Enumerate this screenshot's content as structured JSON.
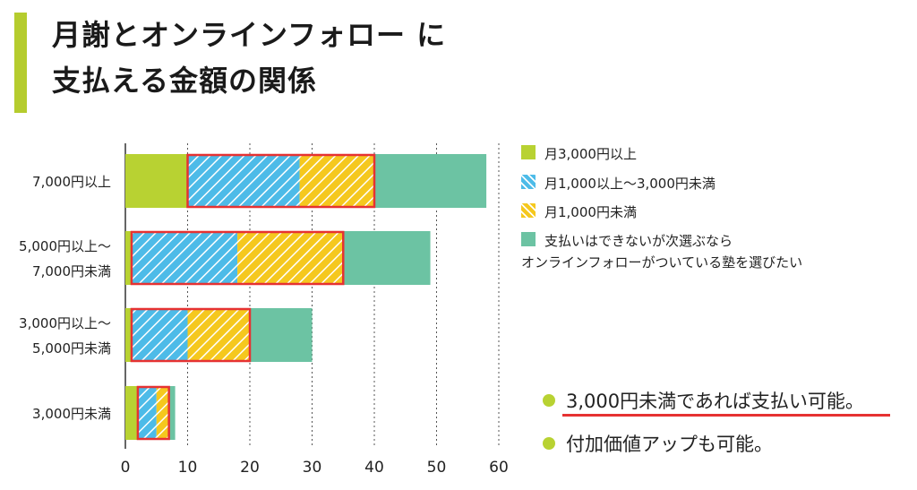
{
  "title": {
    "line1": "月謝とオンラインフォロー に",
    "line2": "支払える金額の関係"
  },
  "colors": {
    "accent_bar": "#b5cc2e",
    "green": "#b8d232",
    "blue": "#4dbbe8",
    "yellow": "#f5c81e",
    "teal": "#6cc3a3",
    "highlight": "#e63232",
    "bullet": "#b8d232"
  },
  "chart_data": {
    "type": "bar",
    "orientation": "horizontal",
    "stacked": true,
    "categories": [
      [
        "7,000円以上"
      ],
      [
        "5,000円以上～",
        "7,000円未満"
      ],
      [
        "3,000円以上～",
        "5,000円未満"
      ],
      [
        "3,000円未満"
      ]
    ],
    "series": [
      {
        "name": "月3,000円以上",
        "color": "green",
        "pattern": "solid",
        "values": [
          10,
          1,
          1,
          2
        ]
      },
      {
        "name": "月1,000以上～3,000円未満",
        "color": "blue",
        "pattern": "hatched",
        "values": [
          18,
          17,
          9,
          3
        ]
      },
      {
        "name": "月1,000円未満",
        "color": "yellow",
        "pattern": "hatched",
        "values": [
          12,
          17,
          10,
          2
        ]
      },
      {
        "name": "支払いはできないが次選ぶなら|オンラインフォローがついている塾を選びたい",
        "color": "teal",
        "pattern": "solid",
        "values": [
          18,
          14,
          10,
          1
        ]
      }
    ],
    "highlighted_series": [
      1,
      2
    ],
    "xlim": [
      0,
      60
    ],
    "xticks": [
      "0",
      "10",
      "20",
      "30",
      "40",
      "50",
      "60"
    ],
    "grid": true,
    "legend_position": "right"
  },
  "notes": [
    {
      "text": "3,000円未満であれば支払い可能。",
      "underlined": true
    },
    {
      "text": "付加価値アップも可能。",
      "underlined": false
    }
  ]
}
